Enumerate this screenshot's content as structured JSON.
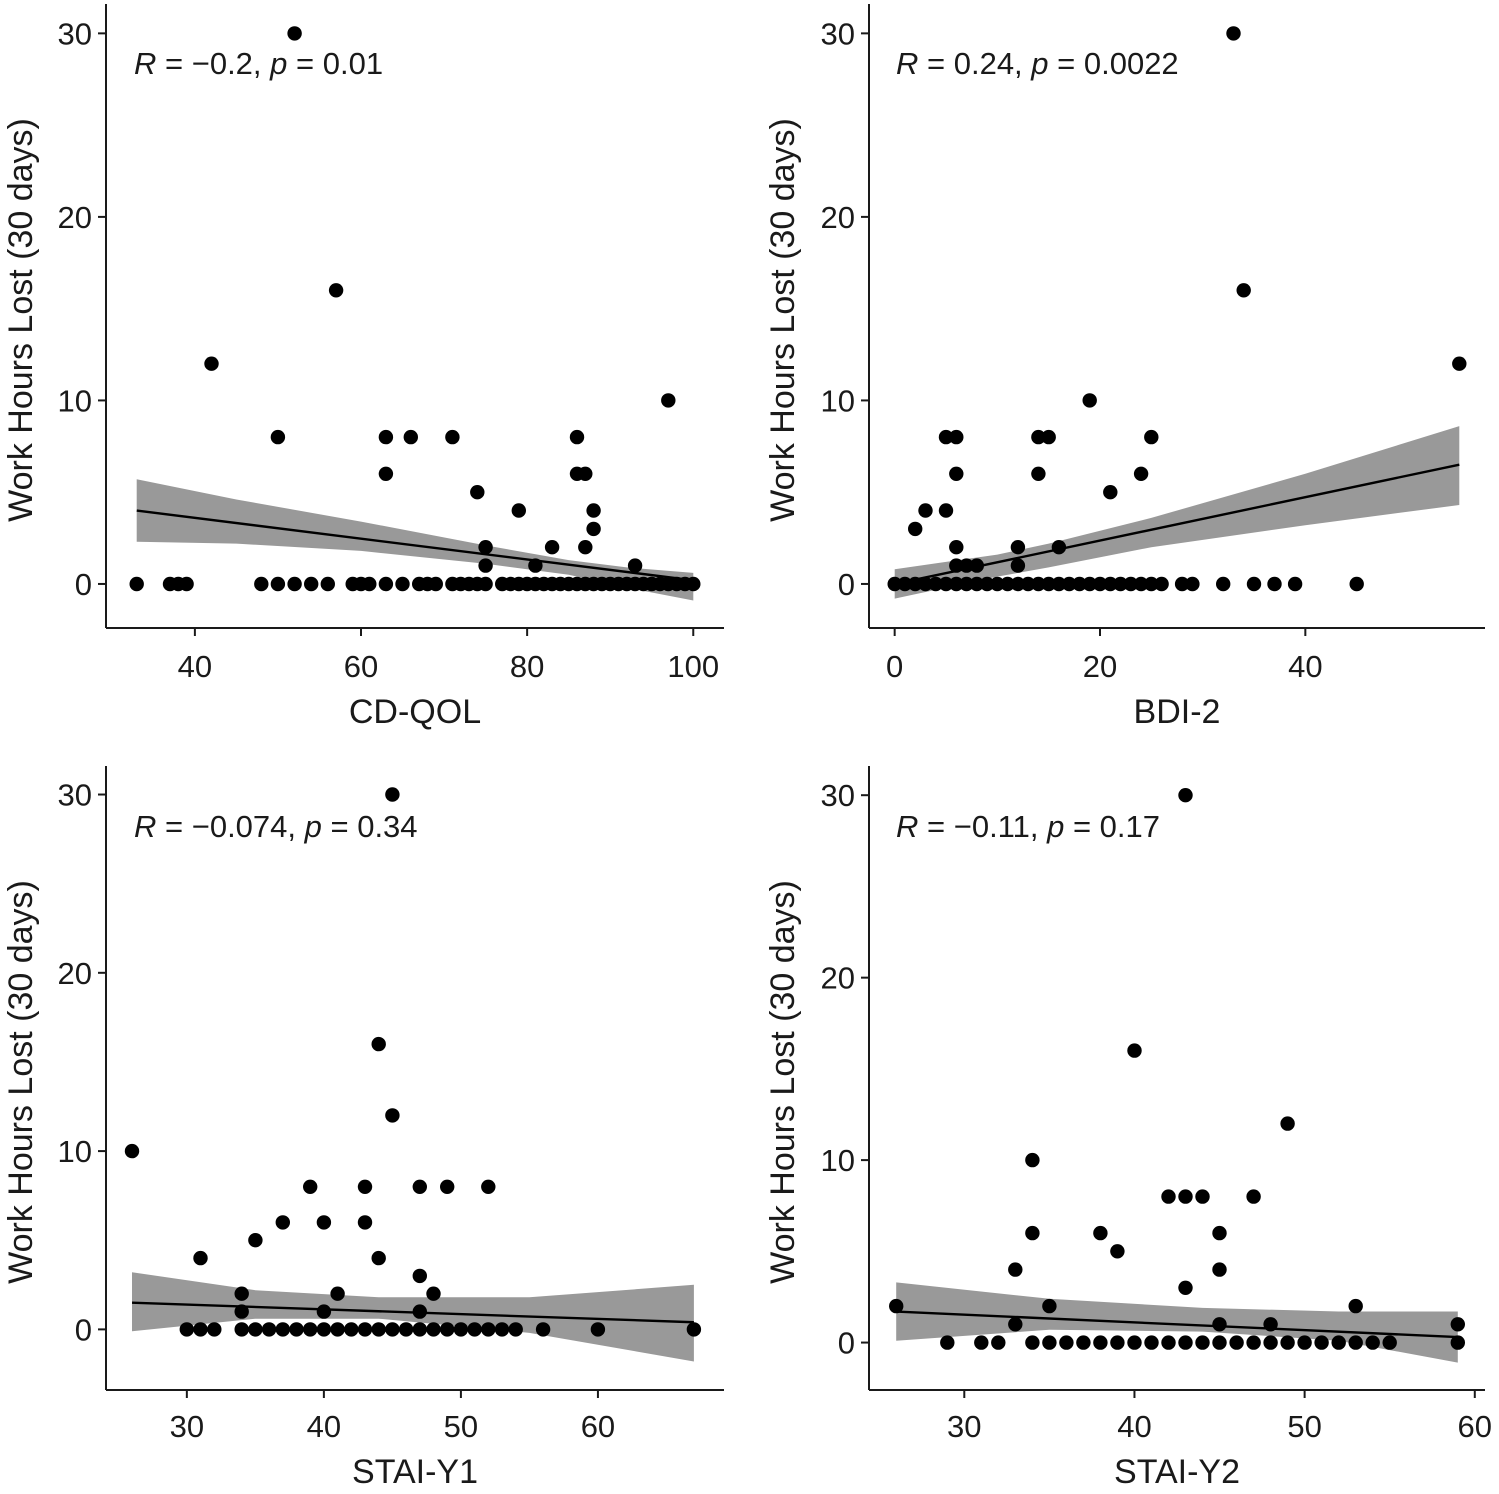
{
  "figure": {
    "ylabel": "Work Hours Lost (30 days)"
  },
  "chart_data": [
    {
      "type": "scatter",
      "title": "",
      "xlabel": "CD-QOL",
      "ylabel": "Work Hours Lost (30 days)",
      "xlim": [
        29.3,
        103.7
      ],
      "ylim": [
        -2.4,
        31.6
      ],
      "xticks": [
        40,
        60,
        80,
        100
      ],
      "yticks": [
        0,
        10,
        20,
        30
      ],
      "annotation": {
        "r_label": "R",
        "r_text": " = −0.2, ",
        "p_label": "p",
        "p_text": " = 0.01"
      },
      "points": [
        [
          52,
          30
        ],
        [
          57,
          16
        ],
        [
          42,
          12
        ],
        [
          97,
          10
        ],
        [
          50,
          8
        ],
        [
          63,
          8
        ],
        [
          66,
          8
        ],
        [
          71,
          8
        ],
        [
          86,
          8
        ],
        [
          63,
          6
        ],
        [
          86,
          6
        ],
        [
          87,
          6
        ],
        [
          74,
          5
        ],
        [
          79,
          4
        ],
        [
          88,
          4
        ],
        [
          88,
          3
        ],
        [
          75,
          2
        ],
        [
          83,
          2
        ],
        [
          87,
          2
        ],
        [
          75,
          1
        ],
        [
          81,
          1
        ],
        [
          93,
          1
        ],
        [
          33,
          0
        ],
        [
          37,
          0
        ],
        [
          38,
          0
        ],
        [
          39,
          0
        ],
        [
          48,
          0
        ],
        [
          50,
          0
        ],
        [
          52,
          0
        ],
        [
          54,
          0
        ],
        [
          56,
          0
        ],
        [
          59,
          0
        ],
        [
          60,
          0
        ],
        [
          61,
          0
        ],
        [
          63,
          0
        ],
        [
          65,
          0
        ],
        [
          67,
          0
        ],
        [
          68,
          0
        ],
        [
          69,
          0
        ],
        [
          71,
          0
        ],
        [
          72,
          0
        ],
        [
          73,
          0
        ],
        [
          74,
          0
        ],
        [
          75,
          0
        ],
        [
          77,
          0
        ],
        [
          78,
          0
        ],
        [
          79,
          0
        ],
        [
          80,
          0
        ],
        [
          81,
          0
        ],
        [
          82,
          0
        ],
        [
          83,
          0
        ],
        [
          84,
          0
        ],
        [
          85,
          0
        ],
        [
          86,
          0
        ],
        [
          87,
          0
        ],
        [
          88,
          0
        ],
        [
          89,
          0
        ],
        [
          90,
          0
        ],
        [
          91,
          0
        ],
        [
          92,
          0
        ],
        [
          93,
          0
        ],
        [
          94,
          0
        ],
        [
          95,
          0
        ],
        [
          96,
          0
        ],
        [
          97,
          0
        ],
        [
          98,
          0
        ],
        [
          99,
          0
        ],
        [
          100,
          0
        ]
      ],
      "fit": {
        "x": [
          33,
          100
        ],
        "y": [
          4.0,
          0.2
        ]
      },
      "ci": {
        "x": [
          33,
          45,
          60,
          75,
          85,
          92,
          100
        ],
        "upper": [
          5.7,
          4.6,
          3.4,
          2.1,
          1.3,
          0.9,
          0.6
        ],
        "lower": [
          2.3,
          2.2,
          1.8,
          1.1,
          0.5,
          -0.2,
          -0.9
        ]
      }
    },
    {
      "type": "scatter",
      "title": "",
      "xlabel": "BDI-2",
      "ylabel": "Work Hours Lost (30 days)",
      "xlim": [
        -2.5,
        57.5
      ],
      "ylim": [
        -2.4,
        31.6
      ],
      "xticks": [
        0,
        20,
        40
      ],
      "yticks": [
        0,
        10,
        20,
        30
      ],
      "annotation": {
        "r_label": "R",
        "r_text": " = 0.24, ",
        "p_label": "p",
        "p_text": " = 0.0022"
      },
      "points": [
        [
          33,
          30
        ],
        [
          34,
          16
        ],
        [
          55,
          12
        ],
        [
          19,
          10
        ],
        [
          5,
          8
        ],
        [
          6,
          8
        ],
        [
          14,
          8
        ],
        [
          15,
          8
        ],
        [
          25,
          8
        ],
        [
          6,
          6
        ],
        [
          14,
          6
        ],
        [
          24,
          6
        ],
        [
          21,
          5
        ],
        [
          3,
          4
        ],
        [
          5,
          4
        ],
        [
          2,
          3
        ],
        [
          6,
          2
        ],
        [
          12,
          2
        ],
        [
          16,
          2
        ],
        [
          6,
          1
        ],
        [
          7,
          1
        ],
        [
          8,
          1
        ],
        [
          12,
          1
        ],
        [
          0,
          0
        ],
        [
          1,
          0
        ],
        [
          2,
          0
        ],
        [
          3,
          0
        ],
        [
          4,
          0
        ],
        [
          5,
          0
        ],
        [
          6,
          0
        ],
        [
          7,
          0
        ],
        [
          8,
          0
        ],
        [
          9,
          0
        ],
        [
          10,
          0
        ],
        [
          11,
          0
        ],
        [
          12,
          0
        ],
        [
          13,
          0
        ],
        [
          14,
          0
        ],
        [
          15,
          0
        ],
        [
          16,
          0
        ],
        [
          17,
          0
        ],
        [
          18,
          0
        ],
        [
          19,
          0
        ],
        [
          20,
          0
        ],
        [
          21,
          0
        ],
        [
          22,
          0
        ],
        [
          23,
          0
        ],
        [
          24,
          0
        ],
        [
          25,
          0
        ],
        [
          26,
          0
        ],
        [
          28,
          0
        ],
        [
          29,
          0
        ],
        [
          32,
          0
        ],
        [
          35,
          0
        ],
        [
          37,
          0
        ],
        [
          39,
          0
        ],
        [
          45,
          0
        ]
      ],
      "fit": {
        "x": [
          0,
          55
        ],
        "y": [
          0.0,
          6.5
        ]
      },
      "ci": {
        "x": [
          0,
          5,
          10,
          15,
          25,
          40,
          55
        ],
        "upper": [
          0.8,
          1.2,
          1.6,
          2.2,
          3.6,
          6.0,
          8.6
        ],
        "lower": [
          -0.8,
          -0.2,
          0.4,
          0.9,
          2.0,
          3.2,
          4.3
        ]
      }
    },
    {
      "type": "scatter",
      "title": "",
      "xlabel": "STAI-Y1",
      "ylabel": "Work Hours Lost (30 days)",
      "xlim": [
        24.1,
        69.2
      ],
      "ylim": [
        -3.4,
        31.6
      ],
      "xticks": [
        30,
        40,
        50,
        60
      ],
      "yticks": [
        0,
        10,
        20,
        30
      ],
      "annotation": {
        "r_label": "R",
        "r_text": " = −0.074, ",
        "p_label": "p",
        "p_text": " = 0.34"
      },
      "points": [
        [
          45,
          30
        ],
        [
          44,
          16
        ],
        [
          45,
          12
        ],
        [
          26,
          10
        ],
        [
          39,
          8
        ],
        [
          43,
          8
        ],
        [
          47,
          8
        ],
        [
          49,
          8
        ],
        [
          52,
          8
        ],
        [
          37,
          6
        ],
        [
          40,
          6
        ],
        [
          43,
          6
        ],
        [
          35,
          5
        ],
        [
          31,
          4
        ],
        [
          44,
          4
        ],
        [
          47,
          3
        ],
        [
          34,
          2
        ],
        [
          41,
          2
        ],
        [
          48,
          2
        ],
        [
          34,
          1
        ],
        [
          40,
          1
        ],
        [
          47,
          1
        ],
        [
          30,
          0
        ],
        [
          31,
          0
        ],
        [
          32,
          0
        ],
        [
          34,
          0
        ],
        [
          35,
          0
        ],
        [
          36,
          0
        ],
        [
          37,
          0
        ],
        [
          38,
          0
        ],
        [
          39,
          0
        ],
        [
          40,
          0
        ],
        [
          41,
          0
        ],
        [
          42,
          0
        ],
        [
          43,
          0
        ],
        [
          44,
          0
        ],
        [
          45,
          0
        ],
        [
          46,
          0
        ],
        [
          47,
          0
        ],
        [
          48,
          0
        ],
        [
          49,
          0
        ],
        [
          50,
          0
        ],
        [
          51,
          0
        ],
        [
          52,
          0
        ],
        [
          53,
          0
        ],
        [
          54,
          0
        ],
        [
          56,
          0
        ],
        [
          60,
          0
        ],
        [
          67,
          0
        ]
      ],
      "fit": {
        "x": [
          26,
          67
        ],
        "y": [
          1.5,
          0.4
        ]
      },
      "ci": {
        "x": [
          26,
          35,
          44,
          55,
          67
        ],
        "upper": [
          3.2,
          2.2,
          1.8,
          1.8,
          2.5
        ],
        "lower": [
          -0.1,
          0.6,
          0.6,
          -0.2,
          -1.8
        ]
      }
    },
    {
      "type": "scatter",
      "title": "",
      "xlabel": "STAI-Y2",
      "ylabel": "Work Hours Lost (30 days)",
      "xlim": [
        24.4,
        60.6
      ],
      "ylim": [
        -2.6,
        31.6
      ],
      "xticks": [
        30,
        40,
        50,
        60
      ],
      "yticks": [
        0,
        10,
        20,
        30
      ],
      "annotation": {
        "r_label": "R",
        "r_text": " = −0.11, ",
        "p_label": "p",
        "p_text": " = 0.17"
      },
      "points": [
        [
          43,
          30
        ],
        [
          40,
          16
        ],
        [
          49,
          12
        ],
        [
          34,
          10
        ],
        [
          42,
          8
        ],
        [
          43,
          8
        ],
        [
          44,
          8
        ],
        [
          47,
          8
        ],
        [
          34,
          6
        ],
        [
          38,
          6
        ],
        [
          45,
          6
        ],
        [
          39,
          5
        ],
        [
          33,
          4
        ],
        [
          45,
          4
        ],
        [
          43,
          3
        ],
        [
          26,
          2
        ],
        [
          35,
          2
        ],
        [
          53,
          2
        ],
        [
          33,
          1
        ],
        [
          45,
          1
        ],
        [
          48,
          1
        ],
        [
          59,
          1
        ],
        [
          29,
          0
        ],
        [
          31,
          0
        ],
        [
          32,
          0
        ],
        [
          34,
          0
        ],
        [
          35,
          0
        ],
        [
          36,
          0
        ],
        [
          37,
          0
        ],
        [
          38,
          0
        ],
        [
          39,
          0
        ],
        [
          40,
          0
        ],
        [
          41,
          0
        ],
        [
          42,
          0
        ],
        [
          43,
          0
        ],
        [
          44,
          0
        ],
        [
          45,
          0
        ],
        [
          46,
          0
        ],
        [
          47,
          0
        ],
        [
          48,
          0
        ],
        [
          49,
          0
        ],
        [
          50,
          0
        ],
        [
          51,
          0
        ],
        [
          52,
          0
        ],
        [
          53,
          0
        ],
        [
          54,
          0
        ],
        [
          55,
          0
        ],
        [
          59,
          0
        ]
      ],
      "fit": {
        "x": [
          26,
          59
        ],
        "y": [
          1.7,
          0.3
        ]
      },
      "ci": {
        "x": [
          26,
          35,
          44,
          52,
          59
        ],
        "upper": [
          3.3,
          2.4,
          1.9,
          1.7,
          1.7
        ],
        "lower": [
          0.1,
          0.7,
          0.6,
          0.1,
          -1.1
        ]
      }
    }
  ]
}
